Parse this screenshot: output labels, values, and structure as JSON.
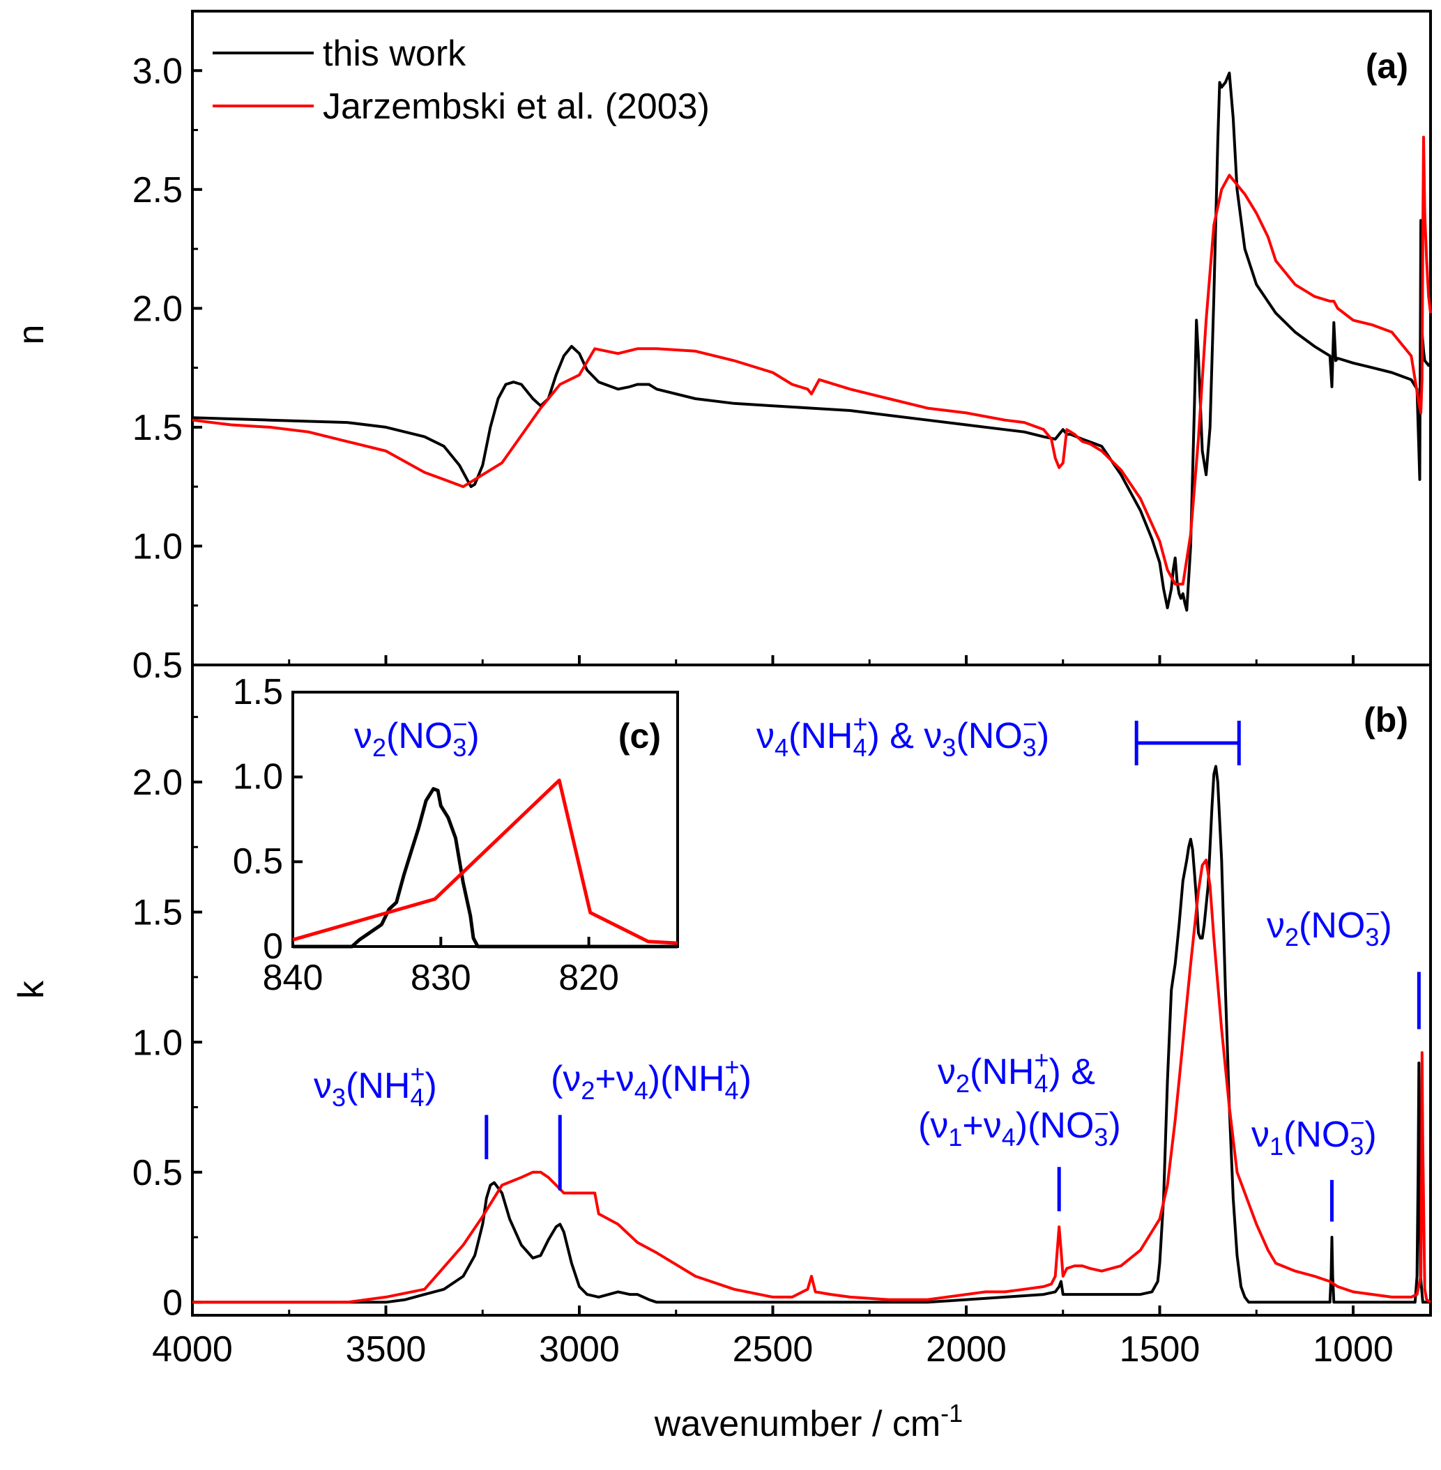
{
  "colors": {
    "this_work": "#000000",
    "jarzembski": "#ff0000",
    "annotation": "#0000ff",
    "axes": "#000000"
  },
  "chart_data": [
    {
      "id": "a",
      "type": "line",
      "panel_label": "(a)",
      "ylabel": "n",
      "xlabel": "",
      "xlim": [
        4000,
        800
      ],
      "ylim": [
        0.5,
        3.25
      ],
      "yticks": [
        "0.5",
        "1.0",
        "1.5",
        "2.0",
        "2.5",
        "3.0"
      ],
      "legend_position": "top-left",
      "series": [
        {
          "name": "this work",
          "color": "#000000",
          "x": [
            4000,
            3800,
            3600,
            3500,
            3400,
            3350,
            3310,
            3290,
            3280,
            3270,
            3250,
            3230,
            3210,
            3190,
            3170,
            3150,
            3120,
            3100,
            3080,
            3060,
            3040,
            3020,
            3000,
            2980,
            2950,
            2900,
            2870,
            2850,
            2820,
            2800,
            2700,
            2600,
            2500,
            2400,
            2300,
            2200,
            2100,
            2000,
            1900,
            1850,
            1800,
            1770,
            1760,
            1750,
            1740,
            1730,
            1700,
            1650,
            1600,
            1550,
            1520,
            1500,
            1490,
            1480,
            1470,
            1465,
            1460,
            1455,
            1450,
            1445,
            1440,
            1435,
            1430,
            1420,
            1410,
            1405,
            1400,
            1395,
            1390,
            1380,
            1370,
            1360,
            1350,
            1345,
            1340,
            1330,
            1320,
            1310,
            1300,
            1280,
            1250,
            1200,
            1150,
            1100,
            1060,
            1055,
            1050,
            1045,
            1040,
            1000,
            950,
            900,
            850,
            835,
            830,
            828,
            825,
            822,
            818,
            815,
            810,
            805,
            800
          ],
          "y": [
            1.54,
            1.53,
            1.52,
            1.5,
            1.46,
            1.42,
            1.34,
            1.28,
            1.25,
            1.26,
            1.34,
            1.5,
            1.62,
            1.68,
            1.69,
            1.68,
            1.62,
            1.59,
            1.62,
            1.72,
            1.8,
            1.84,
            1.81,
            1.74,
            1.69,
            1.66,
            1.67,
            1.68,
            1.68,
            1.66,
            1.62,
            1.6,
            1.59,
            1.58,
            1.57,
            1.55,
            1.53,
            1.51,
            1.49,
            1.48,
            1.46,
            1.45,
            1.47,
            1.49,
            1.47,
            1.47,
            1.45,
            1.42,
            1.3,
            1.15,
            1.03,
            0.93,
            0.82,
            0.74,
            0.82,
            0.9,
            0.95,
            0.85,
            0.8,
            0.78,
            0.8,
            0.76,
            0.73,
            1.0,
            1.6,
            1.95,
            1.8,
            1.6,
            1.4,
            1.3,
            1.5,
            2.05,
            2.7,
            2.95,
            2.93,
            2.95,
            2.99,
            2.8,
            2.5,
            2.25,
            2.1,
            1.98,
            1.9,
            1.84,
            1.8,
            1.67,
            1.94,
            1.78,
            1.79,
            1.77,
            1.75,
            1.73,
            1.7,
            1.66,
            1.4,
            1.28,
            2.37,
            1.9,
            1.82,
            1.78,
            1.77,
            1.76,
            1.77
          ]
        },
        {
          "name": "Jarzembski et al. (2003)",
          "color": "#ff0000",
          "x": [
            4000,
            3900,
            3800,
            3700,
            3600,
            3500,
            3400,
            3300,
            3200,
            3100,
            3050,
            3000,
            2960,
            2900,
            2850,
            2800,
            2700,
            2600,
            2500,
            2450,
            2410,
            2400,
            2380,
            2300,
            2200,
            2100,
            2000,
            1900,
            1850,
            1800,
            1780,
            1770,
            1760,
            1750,
            1740,
            1720,
            1700,
            1680,
            1650,
            1600,
            1550,
            1500,
            1480,
            1460,
            1440,
            1420,
            1400,
            1380,
            1360,
            1340,
            1320,
            1300,
            1280,
            1250,
            1220,
            1200,
            1150,
            1100,
            1060,
            1050,
            1040,
            1000,
            950,
            900,
            850,
            840,
            830,
            825,
            822,
            820,
            818,
            815,
            810,
            805,
            800
          ],
          "y": [
            1.53,
            1.51,
            1.5,
            1.48,
            1.44,
            1.4,
            1.31,
            1.25,
            1.35,
            1.58,
            1.68,
            1.72,
            1.83,
            1.81,
            1.83,
            1.83,
            1.82,
            1.78,
            1.73,
            1.68,
            1.66,
            1.64,
            1.7,
            1.66,
            1.62,
            1.58,
            1.56,
            1.53,
            1.52,
            1.49,
            1.45,
            1.37,
            1.33,
            1.35,
            1.49,
            1.47,
            1.44,
            1.43,
            1.4,
            1.32,
            1.2,
            1.02,
            0.9,
            0.84,
            0.84,
            1.05,
            1.45,
            1.95,
            2.35,
            2.5,
            2.56,
            2.52,
            2.48,
            2.4,
            2.3,
            2.2,
            2.1,
            2.05,
            2.03,
            2.03,
            2.0,
            1.95,
            1.93,
            1.9,
            1.8,
            1.7,
            1.6,
            1.56,
            1.7,
            2.3,
            2.72,
            2.4,
            2.2,
            2.05,
            1.98
          ]
        }
      ]
    },
    {
      "id": "b",
      "type": "line",
      "panel_label": "(b)",
      "ylabel": "k",
      "xlabel": "wavenumber / cm-1",
      "xlim": [
        4000,
        800
      ],
      "ylim": [
        -0.05,
        2.45
      ],
      "xticks": [
        "4000",
        "3500",
        "3000",
        "2500",
        "2000",
        "1500",
        "1000"
      ],
      "yticks": [
        "0",
        "0.5",
        "1.0",
        "1.5",
        "2.0"
      ],
      "series": [
        {
          "name": "this work",
          "color": "#000000",
          "x": [
            4000,
            3700,
            3600,
            3500,
            3450,
            3400,
            3350,
            3300,
            3270,
            3250,
            3240,
            3230,
            3220,
            3200,
            3180,
            3150,
            3120,
            3100,
            3080,
            3060,
            3050,
            3040,
            3020,
            3000,
            2980,
            2950,
            2900,
            2870,
            2850,
            2820,
            2800,
            2700,
            2600,
            2500,
            2400,
            2300,
            2200,
            2100,
            2000,
            1900,
            1800,
            1770,
            1760,
            1755,
            1750,
            1740,
            1700,
            1650,
            1600,
            1550,
            1520,
            1505,
            1500,
            1490,
            1480,
            1470,
            1465,
            1460,
            1450,
            1440,
            1430,
            1425,
            1420,
            1415,
            1410,
            1405,
            1400,
            1395,
            1390,
            1385,
            1375,
            1370,
            1365,
            1360,
            1355,
            1350,
            1340,
            1330,
            1320,
            1310,
            1300,
            1290,
            1280,
            1270,
            1260,
            1200,
            1100,
            1060,
            1057,
            1055,
            1053,
            1050,
            1000,
            900,
            840,
            835,
            832,
            830,
            828,
            826,
            820,
            810,
            800
          ],
          "y": [
            0.0,
            0.0,
            0.0,
            0.0,
            0.01,
            0.03,
            0.05,
            0.1,
            0.18,
            0.3,
            0.4,
            0.45,
            0.46,
            0.42,
            0.32,
            0.22,
            0.17,
            0.18,
            0.24,
            0.29,
            0.3,
            0.27,
            0.15,
            0.06,
            0.03,
            0.02,
            0.04,
            0.03,
            0.03,
            0.01,
            0.0,
            0.0,
            0.0,
            0.0,
            0.0,
            0.0,
            0.0,
            0.0,
            0.01,
            0.02,
            0.03,
            0.04,
            0.06,
            0.08,
            0.03,
            0.03,
            0.03,
            0.03,
            0.03,
            0.03,
            0.04,
            0.08,
            0.15,
            0.4,
            0.85,
            1.2,
            1.25,
            1.3,
            1.45,
            1.62,
            1.7,
            1.75,
            1.78,
            1.74,
            1.65,
            1.55,
            1.42,
            1.4,
            1.4,
            1.45,
            1.6,
            1.75,
            1.9,
            2.03,
            2.06,
            2.0,
            1.7,
            1.2,
            0.75,
            0.4,
            0.18,
            0.06,
            0.02,
            0.0,
            0.0,
            0.0,
            0.0,
            0.0,
            0.1,
            0.25,
            0.1,
            0.0,
            0.0,
            0.0,
            0.0,
            0.1,
            0.5,
            0.92,
            0.5,
            0.1,
            0.0,
            0.0,
            0.0
          ]
        },
        {
          "name": "Jarzembski et al. (2003)",
          "color": "#ff0000",
          "x": [
            4000,
            3800,
            3700,
            3600,
            3500,
            3400,
            3300,
            3250,
            3200,
            3150,
            3120,
            3100,
            3080,
            3060,
            3040,
            3020,
            3000,
            2980,
            2960,
            2950,
            2900,
            2850,
            2800,
            2700,
            2600,
            2500,
            2450,
            2410,
            2400,
            2390,
            2350,
            2300,
            2200,
            2100,
            2050,
            2000,
            1950,
            1900,
            1850,
            1800,
            1780,
            1770,
            1760,
            1755,
            1750,
            1740,
            1720,
            1700,
            1680,
            1650,
            1600,
            1550,
            1500,
            1480,
            1460,
            1440,
            1420,
            1400,
            1390,
            1380,
            1370,
            1360,
            1340,
            1320,
            1300,
            1250,
            1220,
            1200,
            1150,
            1100,
            1060,
            1050,
            1040,
            1000,
            900,
            850,
            835,
            825,
            823,
            822,
            820,
            815,
            810,
            800
          ],
          "y": [
            0.0,
            0.0,
            0.0,
            0.0,
            0.02,
            0.05,
            0.22,
            0.33,
            0.45,
            0.48,
            0.5,
            0.5,
            0.48,
            0.45,
            0.42,
            0.42,
            0.42,
            0.42,
            0.42,
            0.34,
            0.3,
            0.23,
            0.19,
            0.1,
            0.05,
            0.02,
            0.02,
            0.05,
            0.1,
            0.04,
            0.03,
            0.02,
            0.01,
            0.01,
            0.02,
            0.03,
            0.04,
            0.04,
            0.05,
            0.06,
            0.07,
            0.1,
            0.29,
            0.2,
            0.1,
            0.13,
            0.14,
            0.14,
            0.13,
            0.12,
            0.14,
            0.2,
            0.32,
            0.45,
            0.7,
            1.0,
            1.3,
            1.58,
            1.68,
            1.7,
            1.6,
            1.4,
            1.05,
            0.75,
            0.5,
            0.3,
            0.2,
            0.15,
            0.12,
            0.1,
            0.08,
            0.07,
            0.06,
            0.04,
            0.02,
            0.02,
            0.03,
            0.1,
            0.5,
            0.96,
            0.6,
            0.05,
            0.01,
            0.0
          ]
        }
      ],
      "annotations": [
        {
          "base": "ν",
          "sub": "3",
          "rest": "(NH",
          "sub2": "4",
          "sup2": "+",
          "close": ")",
          "x": 3240
        },
        {
          "text": "(ν2+ν4)(NH4+)",
          "x": 3050
        },
        {
          "text": "ν2(NH4+) & (ν1+ν4)(NO3−)",
          "x": 1760
        },
        {
          "text": "ν4(NH4+) & ν3(NO3−)",
          "x_range": [
            1560,
            1295
          ]
        },
        {
          "text": "ν1(NO3−)",
          "x": 1055
        },
        {
          "text": "ν2(NO3−)",
          "x": 830
        }
      ]
    },
    {
      "id": "c",
      "type": "line",
      "panel_label": "(c)",
      "ylabel": "",
      "xlabel": "",
      "xlim": [
        840,
        814
      ],
      "ylim": [
        0,
        1.5
      ],
      "xticks": [
        "840",
        "830",
        "820"
      ],
      "yticks": [
        "0",
        "0.5",
        "1.0",
        "1.5"
      ],
      "annotation": "ν2(NO3−)",
      "series": [
        {
          "name": "this work",
          "color": "#000000",
          "x": [
            840,
            836,
            835.5,
            835,
            834.5,
            834,
            833.5,
            833,
            832.5,
            832,
            831.5,
            831,
            830.5,
            830.2,
            830,
            829.5,
            829,
            828.5,
            828,
            827.8,
            827.5,
            827,
            825,
            820,
            814
          ],
          "y": [
            0.0,
            0.0,
            0.04,
            0.07,
            0.1,
            0.13,
            0.22,
            0.26,
            0.42,
            0.56,
            0.7,
            0.86,
            0.93,
            0.92,
            0.83,
            0.76,
            0.64,
            0.38,
            0.18,
            0.05,
            0.0,
            0.0,
            0.0,
            0.0,
            0.0
          ]
        },
        {
          "name": "Jarzembski et al. (2003)",
          "color": "#ff0000",
          "x": [
            840,
            830.4,
            822,
            819.9,
            816,
            814
          ],
          "y": [
            0.04,
            0.28,
            0.98,
            0.2,
            0.03,
            0.02
          ]
        }
      ]
    }
  ],
  "legend": [
    {
      "label": "this work",
      "color": "#000000"
    },
    {
      "label": "Jarzembski et al. (2003)",
      "color": "#ff0000"
    }
  ],
  "annot_text": {
    "nu": "ν",
    "nh": "(NH",
    "no": "(NO",
    "close": ")",
    "amp": " & ",
    "plus": "+",
    "minus": "−",
    "open_paren": "(",
    "s1": "1",
    "s2": "2",
    "s3": "3",
    "s4": "4"
  }
}
